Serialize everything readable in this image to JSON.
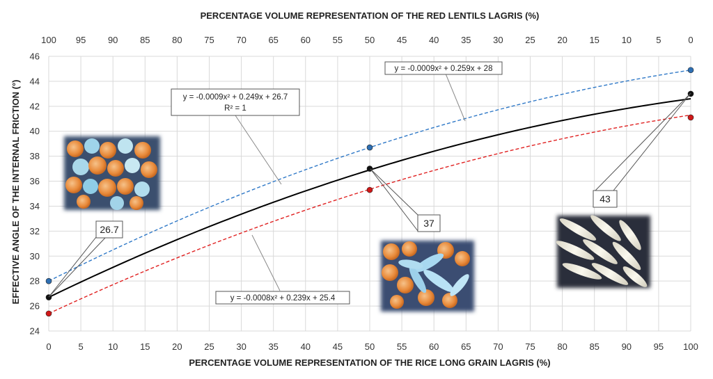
{
  "chart_data": {
    "type": "line",
    "xlabel": "PERCENTAGE VOLUME REPRESENTATION OF THE RICE LONG GRAIN LAGRIS (%)",
    "x2label": "PERCENTAGE VOLUME REPRESENTATION OF THE RED LENTILS LAGRIS (%)",
    "ylabel": "EFFECTIVE ANGLE OF THE INTERNAL FRICTION (°)",
    "xlim": [
      0,
      100
    ],
    "ylim": [
      24,
      46
    ],
    "x_ticks": [
      "0",
      "5",
      "10",
      "15",
      "20",
      "25",
      "30",
      "35",
      "40",
      "45",
      "50",
      "55",
      "60",
      "65",
      "70",
      "75",
      "80",
      "85",
      "90",
      "95",
      "100"
    ],
    "x2_ticks": [
      "100",
      "95",
      "90",
      "85",
      "80",
      "75",
      "70",
      "65",
      "60",
      "55",
      "50",
      "45",
      "40",
      "35",
      "30",
      "25",
      "20",
      "15",
      "10",
      "5",
      "0"
    ],
    "y_ticks": [
      "24",
      "26",
      "28",
      "30",
      "32",
      "34",
      "36",
      "38",
      "40",
      "42",
      "44",
      "46"
    ],
    "grid": true,
    "series": [
      {
        "color": "#000000",
        "marker_color": "#111111",
        "line_style": "solid",
        "x": [
          0,
          50,
          100
        ],
        "y": [
          26.7,
          37,
          43
        ],
        "trendline": {
          "a": -0.0009,
          "b": 0.249,
          "c": 26.7,
          "dashed": false
        },
        "equation": "y = -0.0009x² + 0.249x + 26.7",
        "r2": "R² = 1"
      },
      {
        "color": "#2e78c7",
        "marker_color": "#2e6fb3",
        "line_style": "dashed",
        "x": [
          0,
          50,
          100
        ],
        "y": [
          28,
          38.7,
          44.9
        ],
        "trendline": {
          "a": -0.0009,
          "b": 0.259,
          "c": 28,
          "dashed": true
        },
        "equation": "y = -0.0009x² + 0.259x + 28"
      },
      {
        "color": "#e02020",
        "marker_color": "#d01818",
        "line_style": "dashed",
        "x": [
          0,
          50,
          100
        ],
        "y": [
          25.4,
          35.3,
          41.1
        ],
        "trendline": {
          "a": -0.0008,
          "b": 0.239,
          "c": 25.4,
          "dashed": true
        },
        "equation": "y = -0.0008x² + 0.239x + 25.4"
      }
    ],
    "point_labels": [
      "26.7",
      "37",
      "43"
    ]
  }
}
